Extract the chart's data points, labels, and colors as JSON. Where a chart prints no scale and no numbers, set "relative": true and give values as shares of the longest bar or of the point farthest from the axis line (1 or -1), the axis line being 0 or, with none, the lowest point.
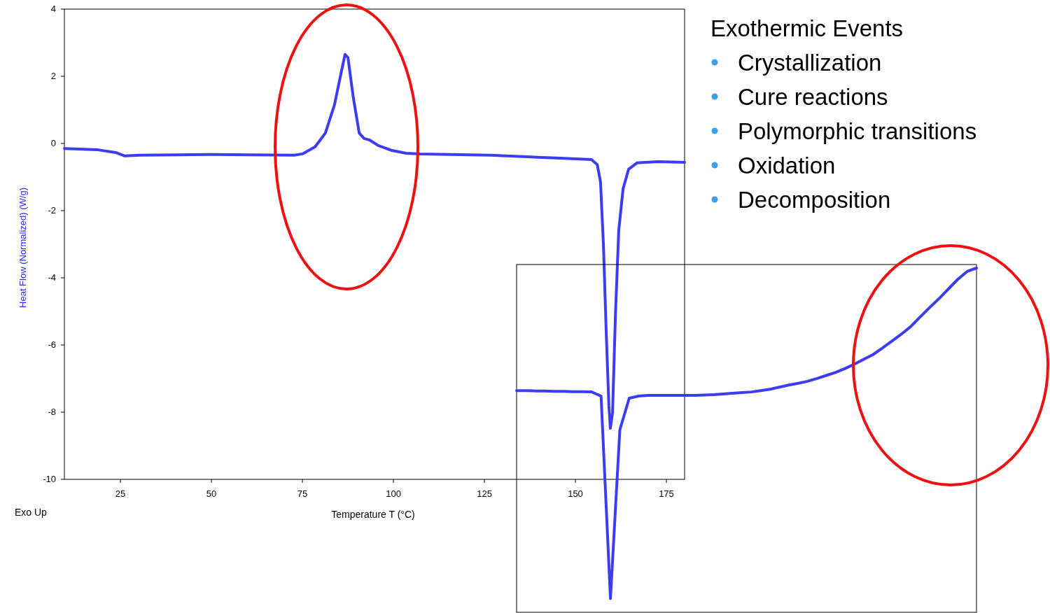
{
  "chart_data": [
    {
      "type": "line",
      "xlabel": "Temperature  T (°C)",
      "ylabel": "Heat Flow (Normalized)  (W/g)",
      "xlim": [
        9.6,
        180
      ],
      "ylim": [
        -10,
        4
      ],
      "xticks": [
        25,
        50,
        75,
        100,
        125,
        150,
        175
      ],
      "yticks": [
        -10,
        -8,
        -6,
        -4,
        -2,
        0,
        2,
        4
      ],
      "annotations": [
        "Exo Up"
      ],
      "x": [
        9.6,
        18.8,
        23.7,
        26.2,
        30.4,
        49.6,
        72.7,
        75,
        78.5,
        81.3,
        83.8,
        85.8,
        86.7,
        87.5,
        89,
        90.6,
        91.9,
        93.5,
        95.8,
        99.6,
        103.5,
        107.3,
        126.5,
        145.8,
        154.4,
        156,
        156.9,
        157.7,
        158.5,
        159.2,
        159.6,
        160.2,
        161,
        161.9,
        163.1,
        164.6,
        166.9,
        172.7,
        180
      ],
      "series": [
        {
          "color": "#3c3cf0",
          "values": [
            -0.15,
            -0.19,
            -0.27,
            -0.37,
            -0.35,
            -0.33,
            -0.35,
            -0.31,
            -0.1,
            0.31,
            1.15,
            2.19,
            2.65,
            2.56,
            1.35,
            0.31,
            0.15,
            0.1,
            -0.06,
            -0.21,
            -0.29,
            -0.31,
            -0.35,
            -0.44,
            -0.48,
            -0.63,
            -1.15,
            -3.02,
            -5.73,
            -7.81,
            -8.48,
            -8.02,
            -5.1,
            -2.6,
            -1.35,
            -0.77,
            -0.58,
            -0.54,
            -0.56
          ]
        }
      ]
    },
    {
      "type": "line",
      "relative": true,
      "categories": [
        null,
        null,
        null,
        null,
        null,
        null,
        null,
        null,
        null,
        null,
        null,
        null,
        null,
        null,
        null,
        null,
        null,
        null,
        null,
        null,
        null,
        null,
        null,
        null,
        null,
        null,
        null,
        null,
        null,
        null,
        null,
        null,
        null,
        null,
        null,
        null,
        null,
        null,
        null,
        null,
        null,
        null,
        null,
        null,
        null,
        null,
        null,
        null,
        null,
        null
      ],
      "series": [
        {
          "color": "#3c3cf0",
          "values": [
            0.644,
            0.644,
            0.643,
            0.643,
            0.642,
            0.642,
            0.641,
            0.641,
            0.64,
            0.628,
            0.04,
            0.53,
            0.622,
            0.628,
            0.63,
            0.63,
            0.63,
            0.63,
            0.63,
            0.63,
            0.631,
            0.632,
            0.634,
            0.636,
            0.638,
            0.64,
            0.644,
            0.648,
            0.654,
            0.66,
            0.665,
            0.671,
            0.679,
            0.688,
            0.697,
            0.708,
            0.721,
            0.735,
            0.749,
            0.768,
            0.788,
            0.808,
            0.83,
            0.858,
            0.885,
            0.911,
            0.939,
            0.967,
            0.99,
            1.0
          ]
        }
      ]
    },
    {
      "type": "other",
      "title": "Exothermic Events",
      "annotations": [
        "Crystallization",
        "Cure reactions",
        "Polymorphic transitions",
        "Oxidation",
        "Decomposition"
      ]
    }
  ]
}
